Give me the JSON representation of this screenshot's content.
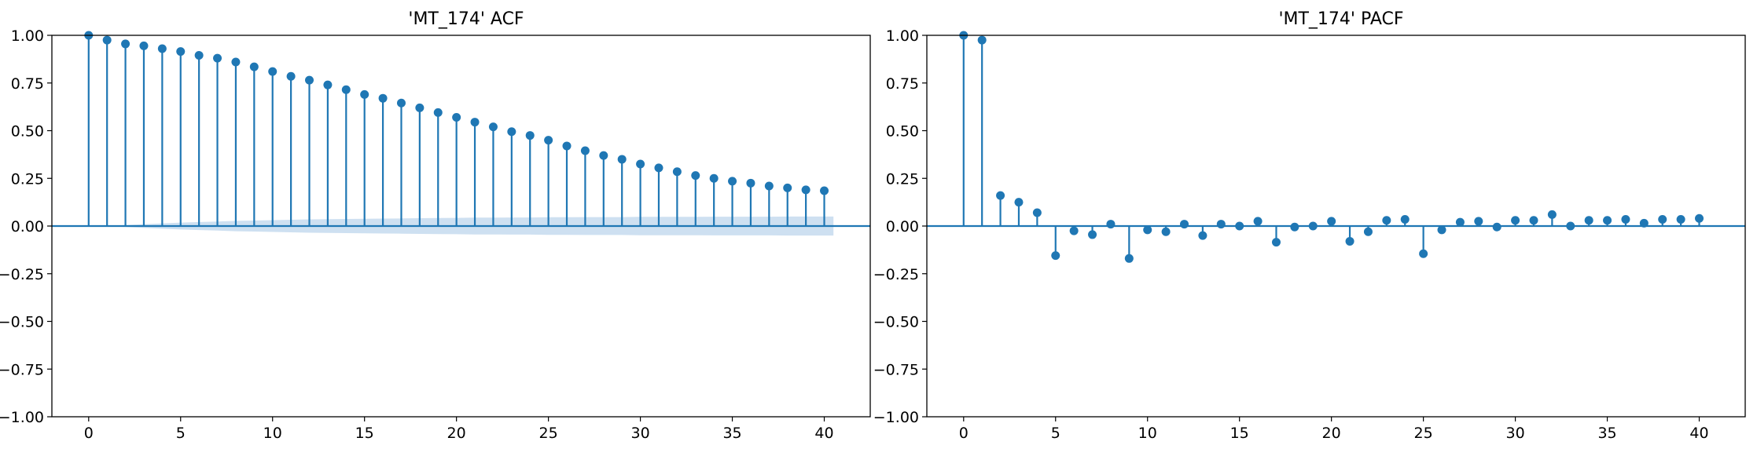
{
  "figure": {
    "colors": {
      "stem": "#1f77b4",
      "band": "#c6dbef",
      "axes": "#000000",
      "background": "#ffffff"
    }
  },
  "chart_data": [
    {
      "type": "stem",
      "title": "'MT_174' ACF",
      "xlabel": "",
      "ylabel": "",
      "xlim": [
        -2.0,
        42.5
      ],
      "ylim": [
        -1.0,
        1.0
      ],
      "x_ticks": [
        0,
        5,
        10,
        15,
        20,
        25,
        30,
        35,
        40
      ],
      "y_ticks": [
        -1.0,
        -0.75,
        -0.5,
        -0.25,
        0.0,
        0.25,
        0.5,
        0.75,
        1.0
      ],
      "x_tick_labels": [
        "0",
        "5",
        "10",
        "15",
        "20",
        "25",
        "30",
        "35",
        "40"
      ],
      "y_tick_labels": [
        "−1.00",
        "−0.75",
        "−0.50",
        "−0.25",
        "0.00",
        "0.25",
        "0.50",
        "0.75",
        "1.00"
      ],
      "lags": [
        0,
        1,
        2,
        3,
        4,
        5,
        6,
        7,
        8,
        9,
        10,
        11,
        12,
        13,
        14,
        15,
        16,
        17,
        18,
        19,
        20,
        21,
        22,
        23,
        24,
        25,
        26,
        27,
        28,
        29,
        30,
        31,
        32,
        33,
        34,
        35,
        36,
        37,
        38,
        39,
        40
      ],
      "values": [
        1.0,
        0.975,
        0.955,
        0.945,
        0.93,
        0.915,
        0.895,
        0.88,
        0.86,
        0.835,
        0.81,
        0.785,
        0.765,
        0.74,
        0.715,
        0.69,
        0.67,
        0.645,
        0.62,
        0.595,
        0.57,
        0.545,
        0.52,
        0.495,
        0.475,
        0.45,
        0.42,
        0.395,
        0.37,
        0.35,
        0.325,
        0.305,
        0.285,
        0.265,
        0.25,
        0.235,
        0.225,
        0.21,
        0.2,
        0.19,
        0.185
      ],
      "confidence_band": [
        0.0,
        0.0,
        0.005,
        0.01,
        0.014,
        0.018,
        0.021,
        0.024,
        0.027,
        0.029,
        0.031,
        0.033,
        0.035,
        0.036,
        0.037,
        0.038,
        0.039,
        0.04,
        0.041,
        0.042,
        0.043,
        0.044,
        0.044,
        0.045,
        0.045,
        0.046,
        0.046,
        0.047,
        0.047,
        0.047,
        0.048,
        0.048,
        0.048,
        0.048,
        0.049,
        0.049,
        0.049,
        0.049,
        0.05,
        0.05,
        0.05
      ],
      "grid": false,
      "legend": "none"
    },
    {
      "type": "stem",
      "title": "'MT_174' PACF",
      "xlabel": "",
      "ylabel": "",
      "xlim": [
        -2.0,
        42.5
      ],
      "ylim": [
        -1.0,
        1.0
      ],
      "x_ticks": [
        0,
        5,
        10,
        15,
        20,
        25,
        30,
        35,
        40
      ],
      "y_ticks": [
        -1.0,
        -0.75,
        -0.5,
        -0.25,
        0.0,
        0.25,
        0.5,
        0.75,
        1.0
      ],
      "x_tick_labels": [
        "0",
        "5",
        "10",
        "15",
        "20",
        "25",
        "30",
        "35",
        "40"
      ],
      "y_tick_labels": [
        "−1.00",
        "−0.75",
        "−0.50",
        "−0.25",
        "0.00",
        "0.25",
        "0.50",
        "0.75",
        "1.00"
      ],
      "lags": [
        0,
        1,
        2,
        3,
        4,
        5,
        6,
        7,
        8,
        9,
        10,
        11,
        12,
        13,
        14,
        15,
        16,
        17,
        18,
        19,
        20,
        21,
        22,
        23,
        24,
        25,
        26,
        27,
        28,
        29,
        30,
        31,
        32,
        33,
        34,
        35,
        36,
        37,
        38,
        39,
        40
      ],
      "values": [
        1.0,
        0.975,
        0.16,
        0.125,
        0.07,
        -0.155,
        -0.025,
        -0.045,
        0.01,
        -0.17,
        -0.02,
        -0.03,
        0.01,
        -0.05,
        0.01,
        0.0,
        0.025,
        -0.085,
        -0.005,
        0.0,
        0.025,
        -0.08,
        -0.03,
        0.03,
        0.035,
        -0.145,
        -0.02,
        0.02,
        0.025,
        -0.005,
        0.03,
        0.03,
        0.06,
        0.0,
        0.03,
        0.03,
        0.035,
        0.015,
        0.035,
        0.035,
        0.04
      ],
      "grid": false,
      "legend": "none"
    }
  ]
}
